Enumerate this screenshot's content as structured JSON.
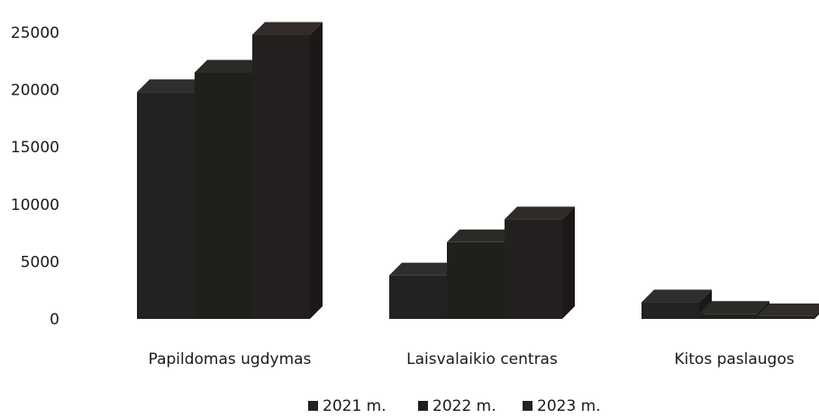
{
  "chart_data": {
    "type": "bar",
    "style": "3d-clustered",
    "title": "",
    "xlabel": "",
    "ylabel": "",
    "ylim": [
      0,
      25000
    ],
    "yticks": [
      "0",
      "5000",
      "10000",
      "15000",
      "20000",
      "25000"
    ],
    "grid": false,
    "legend_position": "bottom",
    "categories": [
      "Papildomas ugdymas",
      "Laisvalaikio centras",
      "Kitos paslaugos"
    ],
    "series": [
      {
        "name": "2021 m.",
        "color": "#222222",
        "values": [
          19800,
          3800,
          1450
        ]
      },
      {
        "name": "2022 m.",
        "color": "#1f1f1c",
        "values": [
          21500,
          6700,
          450
        ]
      },
      {
        "name": "2023 m.",
        "color": "#24201f",
        "values": [
          24800,
          8700,
          250
        ]
      }
    ]
  }
}
